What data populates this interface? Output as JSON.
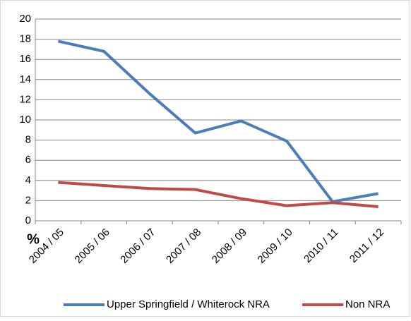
{
  "chart_data": {
    "type": "line",
    "y_label": "%",
    "categories": [
      "2004 / 05",
      "2005 / 06",
      "2006 / 07",
      "2007 / 08",
      "2008 / 09",
      "2009 / 10",
      "2010 / 11",
      "2011 / 12"
    ],
    "series": [
      {
        "name": "Upper Springfield / Whiterock NRA",
        "color": "#4a7ebb",
        "values": [
          17.8,
          16.8,
          12.6,
          8.7,
          9.9,
          7.9,
          1.9,
          2.7
        ]
      },
      {
        "name": "Non NRA",
        "color": "#be4b48",
        "values": [
          3.8,
          3.5,
          3.2,
          3.1,
          2.2,
          1.5,
          1.8,
          1.4
        ]
      }
    ],
    "ylim": [
      0,
      20
    ],
    "yticks": [
      0,
      2,
      4,
      6,
      8,
      10,
      12,
      14,
      16,
      18,
      20
    ],
    "grid": true,
    "legend": "bottom"
  }
}
